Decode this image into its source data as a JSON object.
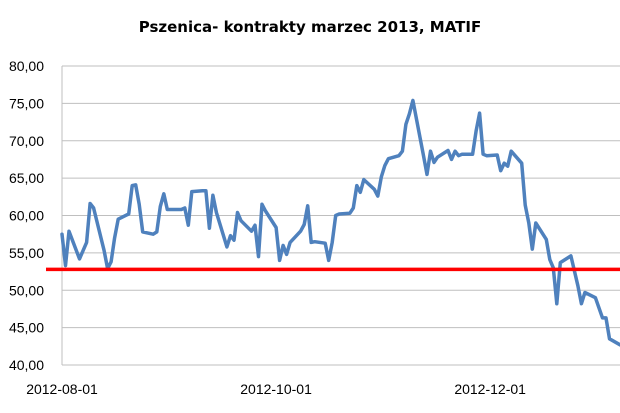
{
  "chart_data": {
    "type": "line",
    "title": "Pszenica- kontrakty marzec 2013, MATIF",
    "xlabel": "",
    "ylabel": "",
    "ylim": [
      40,
      80
    ],
    "xlim": [
      "2012-08-01",
      "2013-01-07"
    ],
    "y_ticks": [
      "40,00",
      "45,00",
      "50,00",
      "55,00",
      "60,00",
      "65,00",
      "70,00",
      "75,00",
      "80,00"
    ],
    "x_ticks": [
      {
        "date": "2012-08-01",
        "label": "2012-08-01"
      },
      {
        "date": "2012-10-01",
        "label": "2012-10-01"
      },
      {
        "date": "2012-12-01",
        "label": "2012-12-01"
      }
    ],
    "grid": "horizontal",
    "legend": "none",
    "colors": {
      "series": "#4f81bd",
      "reference": "#ff0000",
      "grid": "#bfbfbf"
    },
    "reference_line": {
      "y": 52.8
    },
    "series": [
      {
        "color": "#4f81bd",
        "points": [
          [
            "2012-08-01",
            57.5
          ],
          [
            "2012-08-02",
            53.3
          ],
          [
            "2012-08-03",
            57.9
          ],
          [
            "2012-08-06",
            54.2
          ],
          [
            "2012-08-08",
            56.4
          ],
          [
            "2012-08-09",
            61.6
          ],
          [
            "2012-08-10",
            61.0
          ],
          [
            "2012-08-13",
            55.3
          ],
          [
            "2012-08-14",
            52.9
          ],
          [
            "2012-08-15",
            53.8
          ],
          [
            "2012-08-16",
            57.0
          ],
          [
            "2012-08-17",
            59.5
          ],
          [
            "2012-08-20",
            60.2
          ],
          [
            "2012-08-21",
            64.0
          ],
          [
            "2012-08-22",
            64.1
          ],
          [
            "2012-08-23",
            61.5
          ],
          [
            "2012-08-24",
            57.8
          ],
          [
            "2012-08-27",
            57.5
          ],
          [
            "2012-08-28",
            57.8
          ],
          [
            "2012-08-29",
            61.2
          ],
          [
            "2012-08-30",
            62.9
          ],
          [
            "2012-08-31",
            60.8
          ],
          [
            "2012-09-03",
            60.8
          ],
          [
            "2012-09-04",
            60.8
          ],
          [
            "2012-09-05",
            61.0
          ],
          [
            "2012-09-06",
            58.7
          ],
          [
            "2012-09-07",
            63.2
          ],
          [
            "2012-09-10",
            63.3
          ],
          [
            "2012-09-11",
            63.3
          ],
          [
            "2012-09-12",
            58.3
          ],
          [
            "2012-09-13",
            62.7
          ],
          [
            "2012-09-14",
            60.4
          ],
          [
            "2012-09-17",
            55.8
          ],
          [
            "2012-09-18",
            57.3
          ],
          [
            "2012-09-19",
            56.7
          ],
          [
            "2012-09-20",
            60.4
          ],
          [
            "2012-09-21",
            59.3
          ],
          [
            "2012-09-24",
            57.9
          ],
          [
            "2012-09-25",
            58.7
          ],
          [
            "2012-09-26",
            54.5
          ],
          [
            "2012-09-27",
            61.5
          ],
          [
            "2012-09-28",
            60.6
          ],
          [
            "2012-10-01",
            58.4
          ],
          [
            "2012-10-02",
            54.0
          ],
          [
            "2012-10-03",
            56.0
          ],
          [
            "2012-10-04",
            54.8
          ],
          [
            "2012-10-05",
            56.4
          ],
          [
            "2012-10-08",
            57.9
          ],
          [
            "2012-10-09",
            58.8
          ],
          [
            "2012-10-10",
            61.3
          ],
          [
            "2012-10-11",
            56.4
          ],
          [
            "2012-10-12",
            56.5
          ],
          [
            "2012-10-15",
            56.3
          ],
          [
            "2012-10-16",
            54.0
          ],
          [
            "2012-10-17",
            56.4
          ],
          [
            "2012-10-18",
            60.0
          ],
          [
            "2012-10-19",
            60.2
          ],
          [
            "2012-10-22",
            60.3
          ],
          [
            "2012-10-23",
            61.0
          ],
          [
            "2012-10-24",
            64.0
          ],
          [
            "2012-10-25",
            63.1
          ],
          [
            "2012-10-26",
            64.8
          ],
          [
            "2012-10-29",
            63.5
          ],
          [
            "2012-10-30",
            62.6
          ],
          [
            "2012-10-31",
            65.2
          ],
          [
            "2012-11-01",
            66.7
          ],
          [
            "2012-11-02",
            67.6
          ],
          [
            "2012-11-05",
            68.0
          ],
          [
            "2012-11-06",
            68.6
          ],
          [
            "2012-11-07",
            72.2
          ],
          [
            "2012-11-08",
            73.6
          ],
          [
            "2012-11-09",
            75.4
          ],
          [
            "2012-11-12",
            68.0
          ],
          [
            "2012-11-13",
            65.5
          ],
          [
            "2012-11-14",
            68.6
          ],
          [
            "2012-11-15",
            67.1
          ],
          [
            "2012-11-16",
            67.8
          ],
          [
            "2012-11-19",
            68.7
          ],
          [
            "2012-11-20",
            67.5
          ],
          [
            "2012-11-21",
            68.6
          ],
          [
            "2012-11-22",
            68.0
          ],
          [
            "2012-11-23",
            68.2
          ],
          [
            "2012-11-26",
            68.2
          ],
          [
            "2012-11-27",
            71.3
          ],
          [
            "2012-11-28",
            73.7
          ],
          [
            "2012-11-29",
            68.2
          ],
          [
            "2012-11-30",
            68.0
          ],
          [
            "2012-12-03",
            68.1
          ],
          [
            "2012-12-04",
            66.0
          ],
          [
            "2012-12-05",
            67.0
          ],
          [
            "2012-12-06",
            66.6
          ],
          [
            "2012-12-07",
            68.6
          ],
          [
            "2012-12-10",
            67.0
          ],
          [
            "2012-12-11",
            61.4
          ],
          [
            "2012-12-12",
            59.0
          ],
          [
            "2012-12-13",
            55.5
          ],
          [
            "2012-12-14",
            59.0
          ],
          [
            "2012-12-17",
            56.8
          ],
          [
            "2012-12-18",
            54.1
          ],
          [
            "2012-12-19",
            53.0
          ],
          [
            "2012-12-20",
            48.2
          ],
          [
            "2012-12-21",
            53.7
          ],
          [
            "2012-12-24",
            54.6
          ],
          [
            "2012-12-26",
            50.6
          ],
          [
            "2012-12-27",
            48.2
          ],
          [
            "2012-12-28",
            49.7
          ],
          [
            "2012-12-31",
            49.0
          ],
          [
            "2013-01-02",
            46.3
          ],
          [
            "2013-01-03",
            46.3
          ],
          [
            "2013-01-04",
            43.5
          ],
          [
            "2013-01-07",
            42.7
          ]
        ]
      }
    ]
  }
}
